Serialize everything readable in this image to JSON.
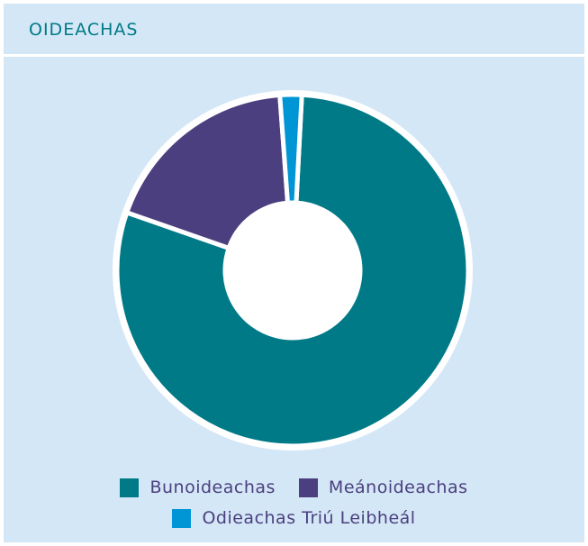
{
  "chart_data": {
    "type": "donut",
    "title": "OIDEACHAS",
    "categories": [
      "Bunoideachas",
      "Meánoideachas",
      "Odieachas Triú Leibheál"
    ],
    "values": [
      79.5,
      18.5,
      2
    ],
    "colors": [
      "#007a87",
      "#4b3f7f",
      "#0096d6"
    ]
  }
}
